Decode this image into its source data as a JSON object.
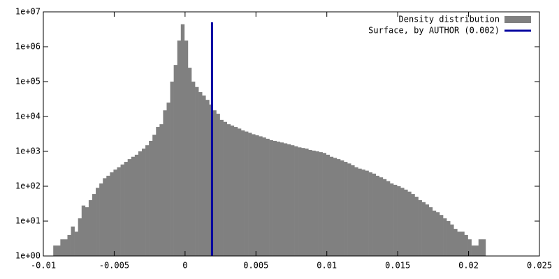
{
  "chart_data": {
    "type": "histogram",
    "log_y": true,
    "legend_position": "top-right",
    "bins": [
      -0.0093,
      -0.00905,
      -0.0088,
      -0.00855,
      -0.0083,
      -0.00805,
      -0.0078,
      -0.00755,
      -0.0073,
      -0.00705,
      -0.0068,
      -0.00655,
      -0.0063,
      -0.00605,
      -0.0058,
      -0.00555,
      -0.0053,
      -0.00505,
      -0.0048,
      -0.00455,
      -0.0043,
      -0.00405,
      -0.0038,
      -0.00355,
      -0.0033,
      -0.00305,
      -0.0028,
      -0.00255,
      -0.0023,
      -0.00205,
      -0.0018,
      -0.00155,
      -0.0013,
      -0.00105,
      -0.0008,
      -0.00055,
      -0.0003,
      -5e-05,
      0.0002,
      0.00045,
      0.0007,
      0.00095,
      0.0012,
      0.00145,
      0.0017,
      0.00195,
      0.0022,
      0.00245,
      0.0027,
      0.00295,
      0.0032,
      0.00345,
      0.0037,
      0.00395,
      0.0042,
      0.00445,
      0.0047,
      0.00495,
      0.0052,
      0.00545,
      0.0057,
      0.00595,
      0.0062,
      0.00645,
      0.0067,
      0.00695,
      0.0072,
      0.00745,
      0.0077,
      0.00795,
      0.0082,
      0.00845,
      0.0087,
      0.00895,
      0.0092,
      0.00945,
      0.0097,
      0.00995,
      0.0102,
      0.01045,
      0.0107,
      0.01095,
      0.0112,
      0.01145,
      0.0117,
      0.01195,
      0.0122,
      0.01245,
      0.0127,
      0.01295,
      0.0132,
      0.01345,
      0.0137,
      0.01395,
      0.0142,
      0.01445,
      0.0147,
      0.01495,
      0.0152,
      0.01545,
      0.0157,
      0.01595,
      0.0162,
      0.01645,
      0.0167,
      0.01695,
      0.0172,
      0.01745,
      0.0177,
      0.01795,
      0.0182,
      0.01845,
      0.0187,
      0.01895,
      0.0192,
      0.01945,
      0.0197,
      0.01995,
      0.0202,
      0.02045,
      0.0207,
      0.02095,
      0.0212
    ],
    "series": [
      {
        "name": "Density distribution",
        "color": "#808080",
        "values": [
          2,
          2,
          3,
          3,
          4,
          7,
          5,
          12,
          28,
          25,
          40,
          60,
          90,
          120,
          170,
          200,
          250,
          300,
          350,
          420,
          500,
          600,
          700,
          800,
          1000,
          1200,
          1500,
          2000,
          3000,
          5000,
          6000,
          15000,
          25000,
          100000,
          300000,
          1500000,
          4400000,
          1500000,
          250000,
          100000,
          70000,
          50000,
          40000,
          30000,
          22000,
          15000,
          12000,
          8000,
          7000,
          6000,
          5500,
          5000,
          4500,
          4000,
          3700,
          3400,
          3100,
          2900,
          2700,
          2500,
          2300,
          2100,
          2000,
          1900,
          1800,
          1700,
          1600,
          1500,
          1400,
          1300,
          1250,
          1200,
          1100,
          1050,
          1000,
          950,
          900,
          800,
          700,
          650,
          600,
          550,
          500,
          450,
          400,
          350,
          320,
          300,
          280,
          250,
          230,
          200,
          180,
          160,
          140,
          120,
          110,
          100,
          90,
          80,
          70,
          60,
          50,
          40,
          35,
          30,
          25,
          20,
          18,
          15,
          12,
          10,
          8,
          6,
          5,
          5,
          4,
          3,
          2,
          2,
          3,
          3,
          2
        ]
      },
      {
        "name": "Surface, by AUTHOR (0.002)",
        "color": "#0000a0",
        "x": 0.0019,
        "y": [
          1,
          5000000
        ]
      }
    ],
    "xlim": [
      -0.01,
      0.025
    ],
    "xticks": [
      -0.01,
      -0.005,
      0,
      0.005,
      0.01,
      0.015,
      0.02,
      0.025
    ],
    "ylim": [
      1,
      10000000
    ],
    "yticks": [
      {
        "value": 1,
        "label": "1e+00"
      },
      {
        "value": 10,
        "label": "1e+01"
      },
      {
        "value": 100,
        "label": "1e+02"
      },
      {
        "value": 1000,
        "label": "1e+03"
      },
      {
        "value": 10000,
        "label": "1e+04"
      },
      {
        "value": 100000,
        "label": "1e+05"
      },
      {
        "value": 1000000,
        "label": "1e+06"
      },
      {
        "value": 10000000,
        "label": "1e+07"
      }
    ]
  }
}
